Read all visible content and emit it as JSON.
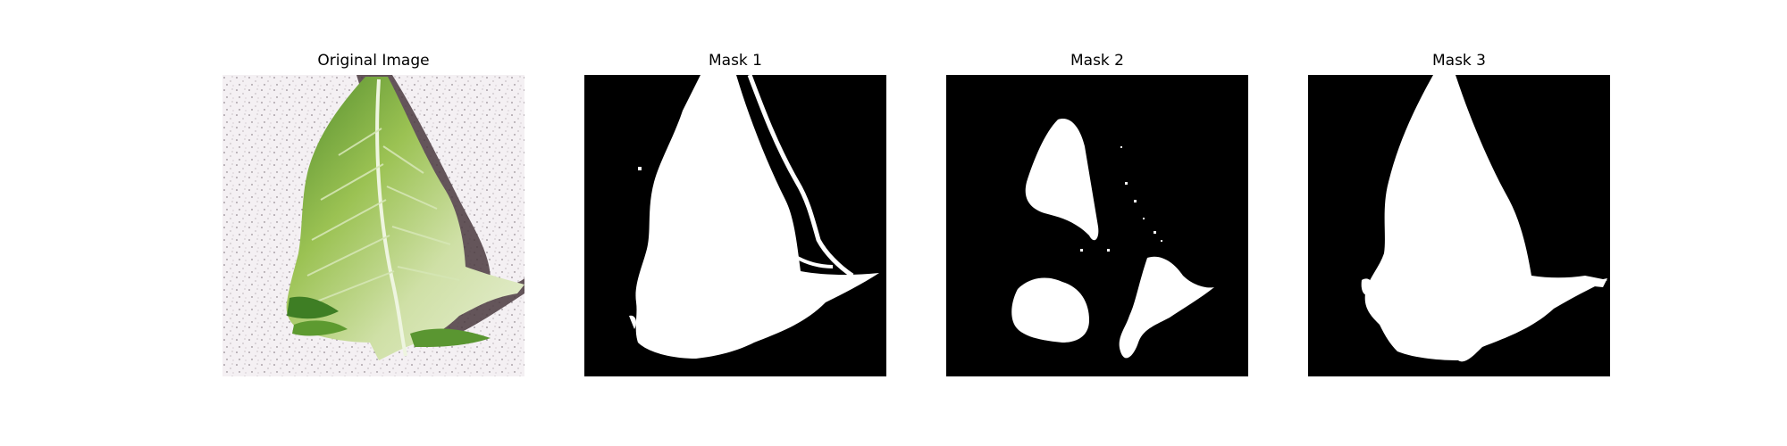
{
  "figure": {
    "panels": [
      {
        "title": "Original Image",
        "kind": "photo"
      },
      {
        "title": "Mask 1",
        "kind": "mask"
      },
      {
        "title": "Mask 2",
        "kind": "mask"
      },
      {
        "title": "Mask 3",
        "kind": "mask"
      }
    ]
  },
  "colors": {
    "background": "#ffffff",
    "mask_background": "#000000",
    "mask_foreground": "#ffffff",
    "leaf_light": "#dbe8b8",
    "leaf_mid": "#9bc253",
    "leaf_dark": "#4f8a2a",
    "shadow": "#4a3a3e",
    "ground": "#f3eff2"
  },
  "icons": {
    "photo": "leaf-photo",
    "mask": "segmentation-mask"
  }
}
